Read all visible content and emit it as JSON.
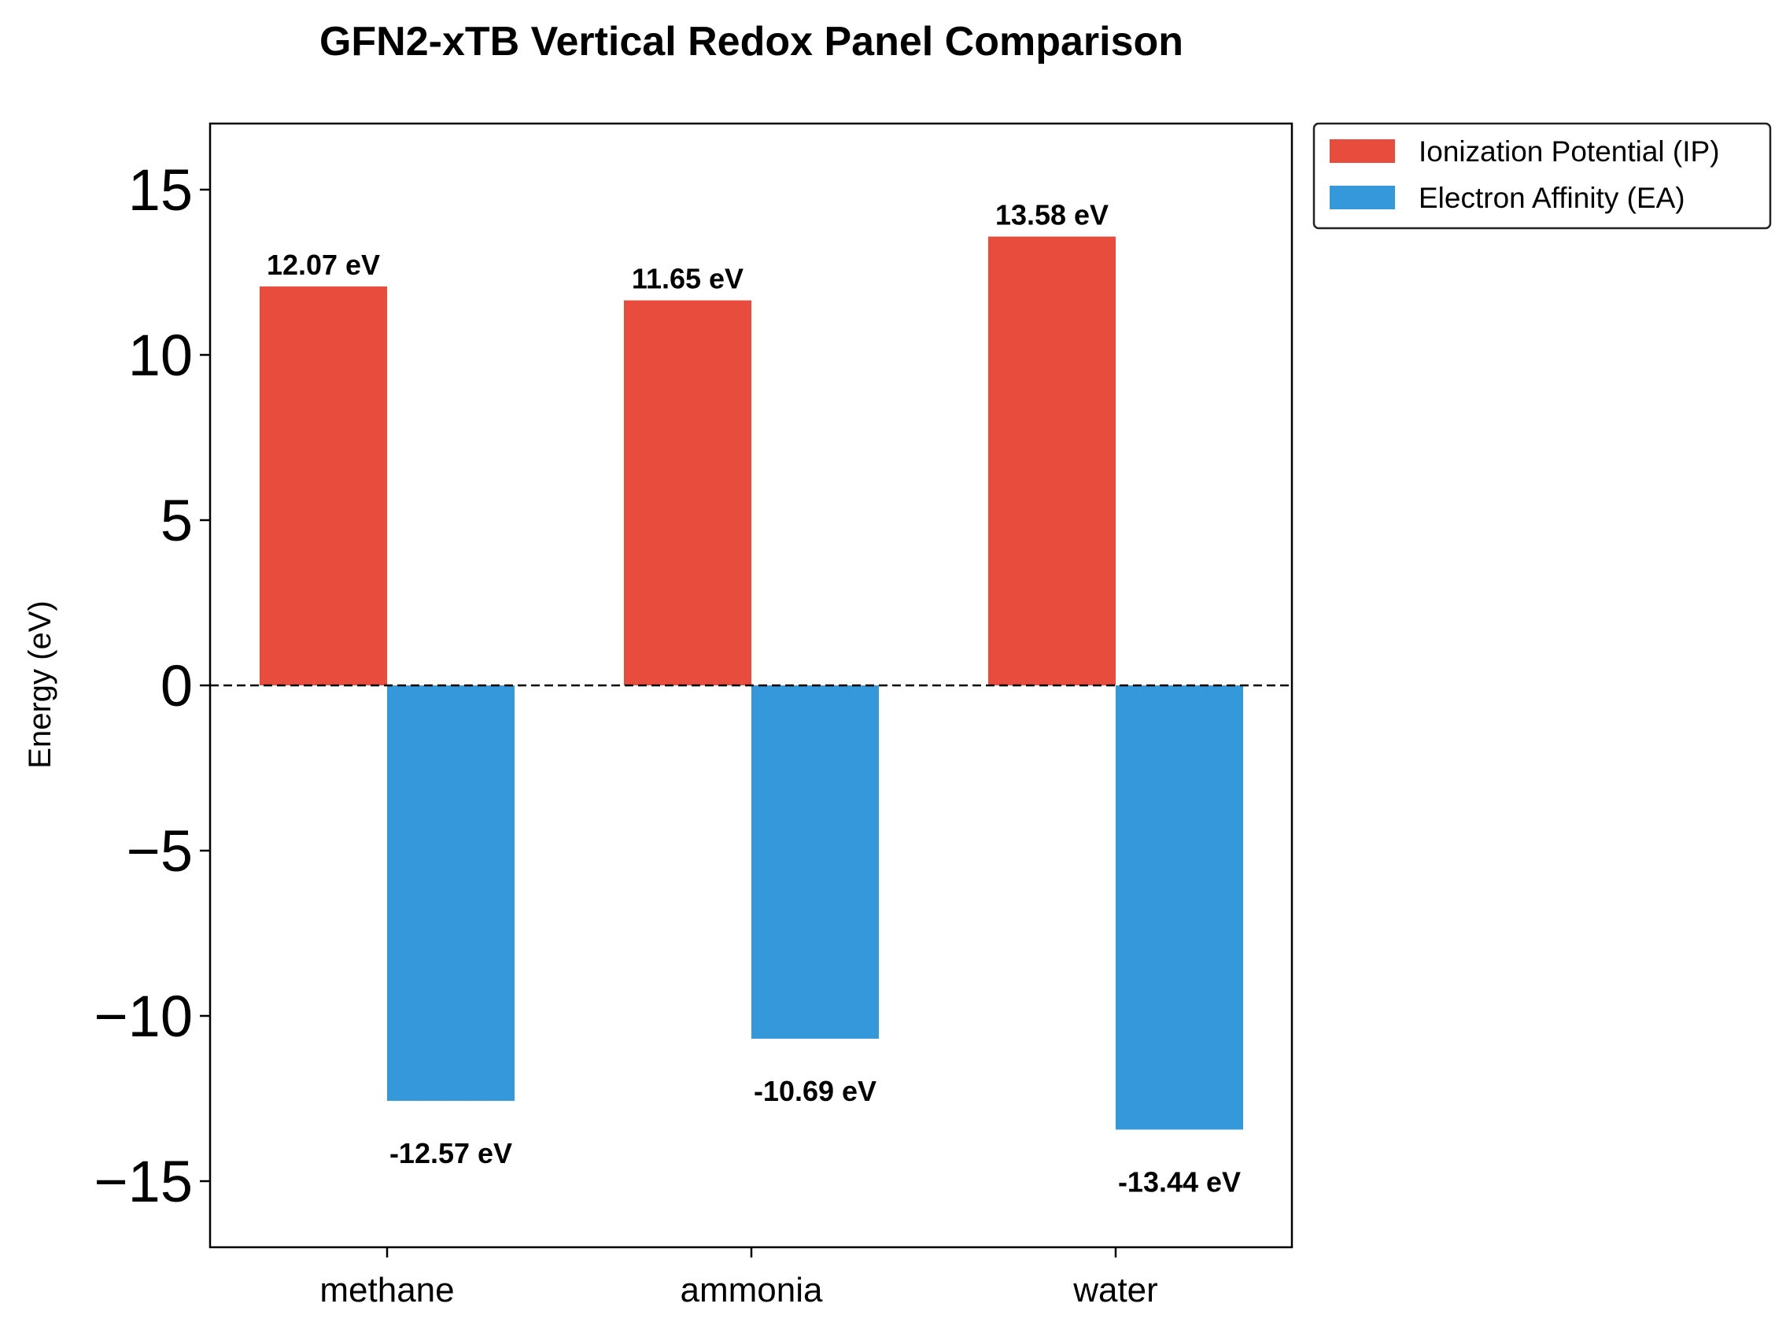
{
  "chart_data": {
    "type": "bar",
    "title": "GFN2-xTB Vertical Redox Panel Comparison",
    "xlabel": "",
    "ylabel": "Energy (eV)",
    "ylim": [
      -17,
      17
    ],
    "yticks": [
      15,
      10,
      5,
      0,
      -5,
      -10,
      -15
    ],
    "ytick_labels": [
      "15",
      "10",
      "5",
      "0",
      "−5",
      "−10",
      "−15"
    ],
    "categories": [
      "methane",
      "ammonia",
      "water"
    ],
    "series": [
      {
        "name": "Ionization Potential (IP)",
        "color": "#e74c3c",
        "values": [
          12.07,
          11.65,
          13.58
        ],
        "labels": [
          "12.07 eV",
          "11.65 eV",
          "13.58 eV"
        ]
      },
      {
        "name": "Electron Affinity (EA)",
        "color": "#3498db",
        "values": [
          -12.57,
          -10.69,
          -13.44
        ],
        "labels": [
          "-12.57 eV",
          "-10.69 eV",
          "-13.44 eV"
        ]
      }
    ],
    "zero_line": "dashed",
    "grid": false,
    "legend_position": "outside-top-right"
  }
}
